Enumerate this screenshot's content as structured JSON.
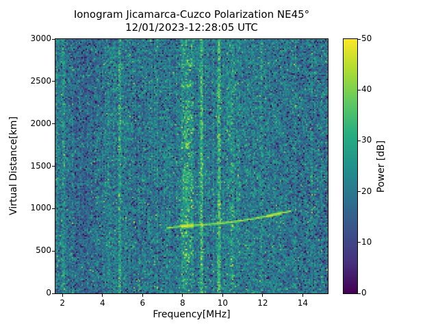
{
  "chart_data": {
    "type": "heatmap",
    "title": "Ionogram Jicamarca-Cuzco Polarization NE45°",
    "subtitle": "12/01/2023-12:28:05 UTC",
    "xlabel": "Frequency[MHz]",
    "ylabel": "Virtual Distance[km]",
    "x_range": [
      1.65,
      15.25
    ],
    "y_range": [
      0,
      3000
    ],
    "x_ticks": [
      2,
      4,
      6,
      8,
      10,
      12,
      14
    ],
    "y_ticks": [
      0,
      500,
      1000,
      1500,
      2000,
      2500,
      3000
    ],
    "grid": false,
    "legend": null,
    "colormap": "viridis",
    "colormap_stops": [
      "#440154",
      "#46327e",
      "#3b528b",
      "#2c728e",
      "#21918c",
      "#27ad81",
      "#5ec962",
      "#aadc32",
      "#fde725"
    ],
    "colorbar": {
      "label": "Power [dB]",
      "ticks": [
        0,
        10,
        20,
        30,
        40,
        50
      ],
      "range": [
        0,
        50
      ]
    },
    "noise": {
      "seed": 1337,
      "mean_db": 20.5,
      "std_db": 5.5,
      "column_jitter_db": 1.3,
      "dark_speck_prob": 0.065,
      "bright_speck_prob": 0.033,
      "dark_band": {
        "f_min": 2.25,
        "f_max": 4.0,
        "delta_db": -2.8
      },
      "right_band": {
        "f_min": 13.2,
        "delta_db": -1.0,
        "extra_dark_prob": 0.035
      }
    },
    "rfi_lines": [
      {
        "f": 1.78,
        "width": 0.07,
        "boost": 5,
        "fuzzy": false,
        "speckle": 0
      },
      {
        "f": 2.05,
        "width": 0.07,
        "boost": 6,
        "fuzzy": false,
        "speckle": 0
      },
      {
        "f": 4.85,
        "width": 0.09,
        "boost": 8,
        "fuzzy": false,
        "speckle": 0
      },
      {
        "f": 7.35,
        "width": 0.06,
        "boost": 4,
        "fuzzy": false,
        "speckle": 0
      },
      {
        "f": 8.25,
        "width": 0.33,
        "boost": 9,
        "fuzzy": true,
        "speckle": 18
      },
      {
        "f": 8.94,
        "width": 0.09,
        "boost": 13,
        "fuzzy": false,
        "speckle": 0
      },
      {
        "f": 9.82,
        "width": 0.09,
        "boost": 14,
        "fuzzy": false,
        "speckle": 0
      },
      {
        "f": 10.38,
        "width": 0.2,
        "boost": 5,
        "fuzzy": true,
        "speckle": 12
      },
      {
        "f": 10.75,
        "width": 0.14,
        "boost": 4,
        "fuzzy": true,
        "speckle": 10
      },
      {
        "f": 11.9,
        "width": 0.07,
        "boost": 3.5,
        "fuzzy": false,
        "speckle": 0
      },
      {
        "f": 14.45,
        "width": 0.07,
        "boost": 3.5,
        "fuzzy": false,
        "speckle": 0
      }
    ],
    "echo_trace": {
      "power_db": 45,
      "half_width_km": 14,
      "points": [
        [
          7.2,
          768
        ],
        [
          7.6,
          782
        ],
        [
          8.0,
          792
        ],
        [
          8.6,
          803
        ],
        [
          9.2,
          813
        ],
        [
          9.8,
          823
        ],
        [
          10.4,
          840
        ],
        [
          11.0,
          860
        ],
        [
          11.6,
          883
        ],
        [
          12.2,
          910
        ],
        [
          12.8,
          940
        ],
        [
          13.4,
          972
        ]
      ],
      "bright_segments": [
        {
          "f_min": 7.95,
          "f_max": 8.55,
          "power_db": 50,
          "half_width_km": 26
        },
        {
          "f_min": 12.15,
          "f_max": 12.9,
          "power_db": 49,
          "half_width_km": 20
        }
      ]
    }
  }
}
